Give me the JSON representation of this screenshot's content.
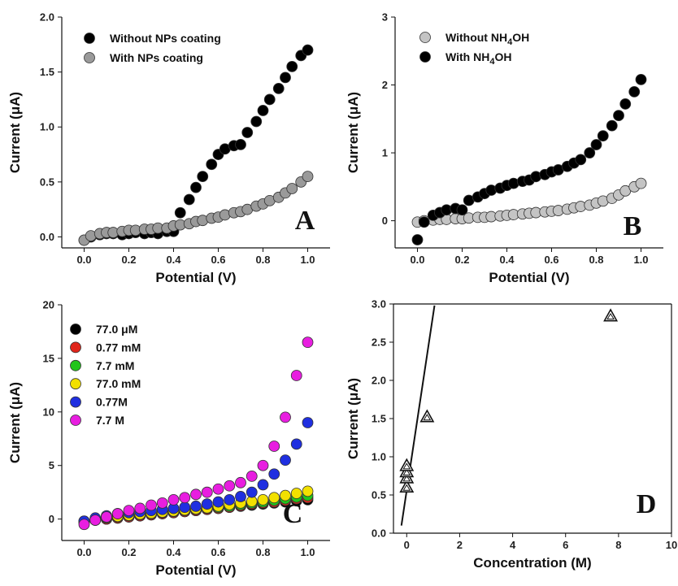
{
  "chart_data": [
    {
      "type": "scatter",
      "panel_label": "A",
      "xlabel": "Potential (V)",
      "ylabel": "Current (μA)",
      "xlim": [
        -0.1,
        1.1
      ],
      "ylim": [
        -0.1,
        2.0
      ],
      "xticks": [
        "0.0",
        "0.2",
        "0.4",
        "0.6",
        "0.8",
        "1.0"
      ],
      "yticks": [
        "0.0",
        "0.5",
        "1.0",
        "1.5",
        "2.0"
      ],
      "legend": "top-left",
      "series": [
        {
          "name": "Without NPs coating",
          "color": "#000000",
          "x": [
            0.0,
            0.03,
            0.07,
            0.1,
            0.13,
            0.17,
            0.2,
            0.23,
            0.27,
            0.3,
            0.33,
            0.37,
            0.4,
            0.43,
            0.47,
            0.5,
            0.53,
            0.57,
            0.6,
            0.63,
            0.67,
            0.7,
            0.73,
            0.77,
            0.8,
            0.83,
            0.87,
            0.9,
            0.93,
            0.97,
            1.0
          ],
          "y": [
            -0.03,
            0.0,
            0.02,
            0.03,
            0.03,
            0.02,
            0.03,
            0.04,
            0.03,
            0.04,
            0.03,
            0.05,
            0.05,
            0.22,
            0.34,
            0.45,
            0.55,
            0.66,
            0.75,
            0.8,
            0.83,
            0.84,
            0.95,
            1.05,
            1.15,
            1.25,
            1.35,
            1.45,
            1.55,
            1.65,
            1.7
          ]
        },
        {
          "name": "With NPs coating",
          "color": "#9a9a9a",
          "x": [
            0.0,
            0.03,
            0.07,
            0.1,
            0.13,
            0.17,
            0.2,
            0.23,
            0.27,
            0.3,
            0.33,
            0.37,
            0.4,
            0.43,
            0.47,
            0.5,
            0.53,
            0.57,
            0.6,
            0.63,
            0.67,
            0.7,
            0.73,
            0.77,
            0.8,
            0.83,
            0.87,
            0.9,
            0.93,
            0.97,
            1.0
          ],
          "y": [
            -0.03,
            0.01,
            0.03,
            0.04,
            0.04,
            0.05,
            0.06,
            0.06,
            0.07,
            0.07,
            0.08,
            0.08,
            0.1,
            0.11,
            0.12,
            0.14,
            0.15,
            0.17,
            0.18,
            0.2,
            0.22,
            0.23,
            0.25,
            0.28,
            0.3,
            0.33,
            0.36,
            0.4,
            0.44,
            0.5,
            0.55
          ]
        }
      ]
    },
    {
      "type": "scatter",
      "panel_label": "B",
      "xlabel": "Potential (V)",
      "ylabel": "Current (μA)",
      "xlim": [
        -0.1,
        1.1
      ],
      "ylim": [
        -0.4,
        3.0
      ],
      "xticks": [
        "0.0",
        "0.2",
        "0.4",
        "0.6",
        "0.8",
        "1.0"
      ],
      "yticks": [
        "0",
        "1",
        "2",
        "3"
      ],
      "legend": "top-left",
      "series": [
        {
          "name": "Without NH4OH",
          "color": "#c4c4c4",
          "x": [
            0.0,
            0.03,
            0.07,
            0.1,
            0.13,
            0.17,
            0.2,
            0.23,
            0.27,
            0.3,
            0.33,
            0.37,
            0.4,
            0.43,
            0.47,
            0.5,
            0.53,
            0.57,
            0.6,
            0.63,
            0.67,
            0.7,
            0.73,
            0.77,
            0.8,
            0.83,
            0.87,
            0.9,
            0.93,
            0.97,
            1.0
          ],
          "y": [
            -0.02,
            0.0,
            0.01,
            0.02,
            0.02,
            0.03,
            0.03,
            0.04,
            0.05,
            0.05,
            0.06,
            0.07,
            0.08,
            0.09,
            0.1,
            0.11,
            0.12,
            0.13,
            0.14,
            0.15,
            0.17,
            0.19,
            0.21,
            0.23,
            0.26,
            0.29,
            0.33,
            0.38,
            0.44,
            0.5,
            0.55
          ]
        },
        {
          "name": "With NH4OH",
          "color": "#000000",
          "x": [
            0.0,
            0.03,
            0.07,
            0.1,
            0.13,
            0.17,
            0.2,
            0.23,
            0.27,
            0.3,
            0.33,
            0.37,
            0.4,
            0.43,
            0.47,
            0.5,
            0.53,
            0.57,
            0.6,
            0.63,
            0.67,
            0.7,
            0.73,
            0.77,
            0.8,
            0.83,
            0.87,
            0.9,
            0.93,
            0.97,
            1.0
          ],
          "y": [
            -0.28,
            -0.02,
            0.08,
            0.12,
            0.16,
            0.18,
            0.16,
            0.3,
            0.35,
            0.4,
            0.45,
            0.48,
            0.52,
            0.55,
            0.58,
            0.6,
            0.65,
            0.68,
            0.72,
            0.75,
            0.8,
            0.85,
            0.9,
            1.0,
            1.12,
            1.25,
            1.4,
            1.55,
            1.72,
            1.9,
            2.08
          ]
        }
      ]
    },
    {
      "type": "scatter",
      "panel_label": "C",
      "xlabel": "Potential (V)",
      "ylabel": "Current (μA)",
      "xlim": [
        -0.1,
        1.1
      ],
      "ylim": [
        -2,
        20
      ],
      "xticks": [
        "0.0",
        "0.2",
        "0.4",
        "0.6",
        "0.8",
        "1.0"
      ],
      "yticks": [
        "0",
        "5",
        "10",
        "15",
        "20"
      ],
      "legend": "top-left",
      "series": [
        {
          "name": "77.0 μM",
          "color": "#000000",
          "x": [
            0.0,
            0.05,
            0.1,
            0.15,
            0.2,
            0.25,
            0.3,
            0.35,
            0.4,
            0.45,
            0.5,
            0.55,
            0.6,
            0.65,
            0.7,
            0.75,
            0.8,
            0.85,
            0.9,
            0.95,
            1.0
          ],
          "y": [
            -0.3,
            -0.1,
            0.0,
            0.1,
            0.2,
            0.3,
            0.4,
            0.5,
            0.6,
            0.7,
            0.8,
            0.9,
            1.0,
            1.1,
            1.2,
            1.3,
            1.4,
            1.5,
            1.6,
            1.7,
            1.8
          ]
        },
        {
          "name": "0.77 mM",
          "color": "#e0251b",
          "x": [
            0.0,
            0.05,
            0.1,
            0.15,
            0.2,
            0.25,
            0.3,
            0.35,
            0.4,
            0.45,
            0.5,
            0.55,
            0.6,
            0.65,
            0.7,
            0.75,
            0.8,
            0.85,
            0.9,
            0.95,
            1.0
          ],
          "y": [
            -0.3,
            -0.1,
            0.0,
            0.1,
            0.2,
            0.3,
            0.4,
            0.5,
            0.6,
            0.7,
            0.8,
            0.9,
            1.0,
            1.1,
            1.25,
            1.4,
            1.5,
            1.6,
            1.75,
            1.9,
            2.0
          ]
        },
        {
          "name": "7.7 mM",
          "color": "#22c51c",
          "x": [
            0.0,
            0.05,
            0.1,
            0.15,
            0.2,
            0.25,
            0.3,
            0.35,
            0.4,
            0.45,
            0.5,
            0.55,
            0.6,
            0.65,
            0.7,
            0.75,
            0.8,
            0.85,
            0.9,
            0.95,
            1.0
          ],
          "y": [
            -0.2,
            0.0,
            0.1,
            0.2,
            0.3,
            0.4,
            0.5,
            0.6,
            0.7,
            0.8,
            0.9,
            1.0,
            1.1,
            1.2,
            1.35,
            1.5,
            1.6,
            1.75,
            1.9,
            2.05,
            2.2
          ]
        },
        {
          "name": "77.0 mM",
          "color": "#f2e000",
          "x": [
            0.0,
            0.05,
            0.1,
            0.15,
            0.2,
            0.25,
            0.3,
            0.35,
            0.4,
            0.45,
            0.5,
            0.55,
            0.6,
            0.65,
            0.7,
            0.75,
            0.8,
            0.85,
            0.9,
            0.95,
            1.0
          ],
          "y": [
            -0.2,
            0.0,
            0.15,
            0.25,
            0.35,
            0.45,
            0.55,
            0.65,
            0.75,
            0.85,
            0.95,
            1.05,
            1.2,
            1.35,
            1.5,
            1.65,
            1.8,
            2.0,
            2.2,
            2.4,
            2.6
          ]
        },
        {
          "name": "0.77M",
          "color": "#1f2fe0",
          "x": [
            0.0,
            0.05,
            0.1,
            0.15,
            0.2,
            0.25,
            0.3,
            0.35,
            0.4,
            0.45,
            0.5,
            0.55,
            0.6,
            0.65,
            0.7,
            0.75,
            0.8,
            0.85,
            0.9,
            0.95,
            1.0
          ],
          "y": [
            -0.2,
            0.1,
            0.3,
            0.5,
            0.6,
            0.7,
            0.8,
            0.9,
            1.0,
            1.1,
            1.2,
            1.4,
            1.6,
            1.8,
            2.1,
            2.5,
            3.2,
            4.2,
            5.5,
            7.0,
            9.0
          ]
        },
        {
          "name": "7.7 M",
          "color": "#e81ee0",
          "x": [
            0.0,
            0.05,
            0.1,
            0.15,
            0.2,
            0.25,
            0.3,
            0.35,
            0.4,
            0.45,
            0.5,
            0.55,
            0.6,
            0.65,
            0.7,
            0.75,
            0.8,
            0.85,
            0.9,
            0.95,
            1.0
          ],
          "y": [
            -0.5,
            -0.1,
            0.2,
            0.5,
            0.8,
            1.0,
            1.3,
            1.5,
            1.8,
            2.0,
            2.3,
            2.5,
            2.8,
            3.1,
            3.4,
            4.0,
            5.0,
            6.8,
            9.5,
            13.4,
            16.5
          ]
        }
      ]
    },
    {
      "type": "scatter",
      "panel_label": "D",
      "xlabel": "Concentration (M)",
      "ylabel": "Current (μA)",
      "xlim": [
        -0.5,
        10
      ],
      "ylim": [
        0.0,
        3.0
      ],
      "xticks": [
        "0",
        "2",
        "4",
        "6",
        "8",
        "10"
      ],
      "yticks": [
        "0.0",
        "0.5",
        "1.0",
        "1.5",
        "2.0",
        "2.5",
        "3.0"
      ],
      "series": [
        {
          "name": "",
          "color": "#ffffff",
          "x": [
            0.0,
            0.0,
            0.0,
            0.0,
            0.77,
            7.7
          ],
          "y": [
            0.6,
            0.72,
            0.8,
            0.88,
            1.52,
            2.84
          ]
        }
      ],
      "fit_line": {
        "x": [
          -0.2,
          1.05
        ],
        "y": [
          0.1,
          2.98
        ]
      }
    }
  ]
}
